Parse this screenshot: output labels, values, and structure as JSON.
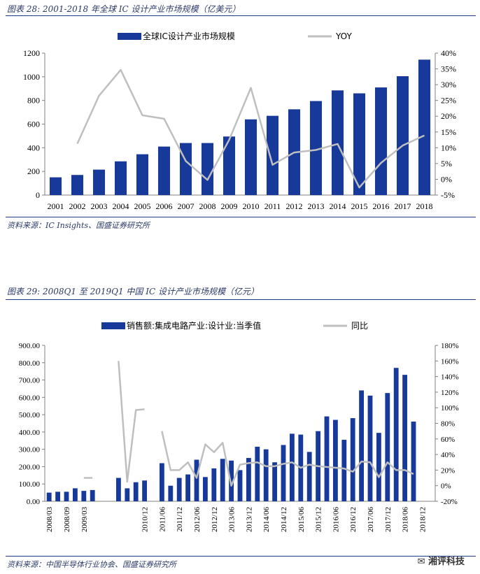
{
  "chart_data": [
    {
      "type": "bar",
      "title": "图表 28:  2001-2018 年全球 IC 设计产业市场规模（亿美元）",
      "source": "资料来源：IC Insights、国盛证券研究所",
      "categories": [
        "2001",
        "2002",
        "2003",
        "2004",
        "2005",
        "2006",
        "2007",
        "2008",
        "2009",
        "2010",
        "2011",
        "2012",
        "2013",
        "2014",
        "2015",
        "2016",
        "2017",
        "2018"
      ],
      "series": [
        {
          "name": "全球IC设计产业市场规模",
          "type": "bar",
          "axis": "left",
          "color": "#17399a",
          "values": [
            150,
            170,
            215,
            285,
            345,
            410,
            440,
            440,
            495,
            640,
            670,
            725,
            795,
            885,
            860,
            910,
            1005,
            1145
          ]
        },
        {
          "name": "YOY",
          "type": "line",
          "axis": "right",
          "color": "#bfbfbf",
          "values": [
            null,
            11.3,
            26.5,
            34.7,
            20.3,
            19.2,
            5.8,
            -0.2,
            12.5,
            29,
            4.6,
            8.5,
            9.3,
            11.2,
            -2.6,
            5.2,
            10.7,
            13.9
          ]
        }
      ],
      "ylim": [
        0,
        1200
      ],
      "yticks": [
        0,
        200,
        400,
        600,
        800,
        1000,
        1200
      ],
      "y2lim": [
        -5,
        40
      ],
      "y2ticks": [
        "-5%",
        "0%",
        "5%",
        "10%",
        "15%",
        "20%",
        "25%",
        "30%",
        "35%",
        "40%"
      ],
      "y2tick_values": [
        -5,
        0,
        5,
        10,
        15,
        20,
        25,
        30,
        35,
        40
      ]
    },
    {
      "type": "bar",
      "title": "图表 29:  2008Q1 至 2019Q1 中国 IC 设计产业市场规模（亿元）",
      "source": "资料来源：中国半导体行业协会、国盛证券研究所",
      "categories": [
        "2008/03",
        "2008/06",
        "2008/09",
        "2008/12",
        "2009/03",
        "2009/06",
        "2009/09",
        "2009/12",
        "2010/03",
        "2010/06",
        "2010/09",
        "2010/12",
        "2011/03",
        "2011/06",
        "2011/09",
        "2011/12",
        "2012/03",
        "2012/06",
        "2012/09",
        "2012/12",
        "2013/03",
        "2013/06",
        "2013/09",
        "2013/12",
        "2014/03",
        "2014/06",
        "2014/09",
        "2014/12",
        "2015/03",
        "2015/06",
        "2015/09",
        "2015/12",
        "2016/03",
        "2016/06",
        "2016/09",
        "2016/12",
        "2017/03",
        "2017/06",
        "2017/09",
        "2017/12",
        "2018/03",
        "2018/06",
        "2018/09",
        "2018/12",
        "2019/03"
      ],
      "xtick_labels": [
        "2008/03",
        "2008/09",
        "2009/03",
        "2010/12",
        "2011/06",
        "2011/12",
        "2012/06",
        "2012/12",
        "2013/06",
        "2013/12",
        "2014/06",
        "2014/12",
        "2015/06",
        "2015/12",
        "2016/06",
        "2016/12",
        "2017/06",
        "2017/12",
        "2018/06",
        "2018/12"
      ],
      "series": [
        {
          "name": "销售额:集成电路产业:设计业:当季值",
          "type": "bar",
          "axis": "left",
          "color": "#17399a",
          "values": [
            50,
            55,
            55,
            75,
            60,
            65,
            null,
            null,
            135,
            75,
            110,
            120,
            null,
            220,
            90,
            135,
            155,
            240,
            140,
            190,
            245,
            235,
            180,
            250,
            315,
            300,
            225,
            325,
            390,
            385,
            285,
            405,
            490,
            470,
            355,
            480,
            640,
            610,
            395,
            625,
            770,
            730,
            460,
            null,
            null
          ]
        },
        {
          "name": "同比",
          "type": "line",
          "axis": "right",
          "color": "#bfbfbf",
          "values": [
            null,
            null,
            null,
            null,
            10,
            10,
            null,
            null,
            160,
            5,
            97,
            98,
            null,
            70,
            20,
            20,
            30,
            10,
            53,
            43,
            55,
            0,
            27,
            29,
            30,
            25,
            25,
            28,
            30,
            23,
            27,
            25,
            24,
            23,
            22,
            18,
            31,
            30,
            11,
            30,
            20,
            20,
            15,
            null,
            null
          ]
        }
      ],
      "ylim": [
        0,
        900
      ],
      "yticks": [
        "0.00",
        "100.00",
        "200.00",
        "300.00",
        "400.00",
        "500.00",
        "600.00",
        "700.00",
        "800.00",
        "900.00"
      ],
      "y2lim": [
        -20,
        180
      ],
      "y2ticks": [
        "-20%",
        "0%",
        "20%",
        "40%",
        "60%",
        "80%",
        "100%",
        "120%",
        "140%",
        "160%",
        "180%"
      ],
      "y2tick_values": [
        -20,
        0,
        20,
        40,
        60,
        80,
        100,
        120,
        140,
        160,
        180
      ]
    }
  ],
  "watermark": "湘评科技"
}
